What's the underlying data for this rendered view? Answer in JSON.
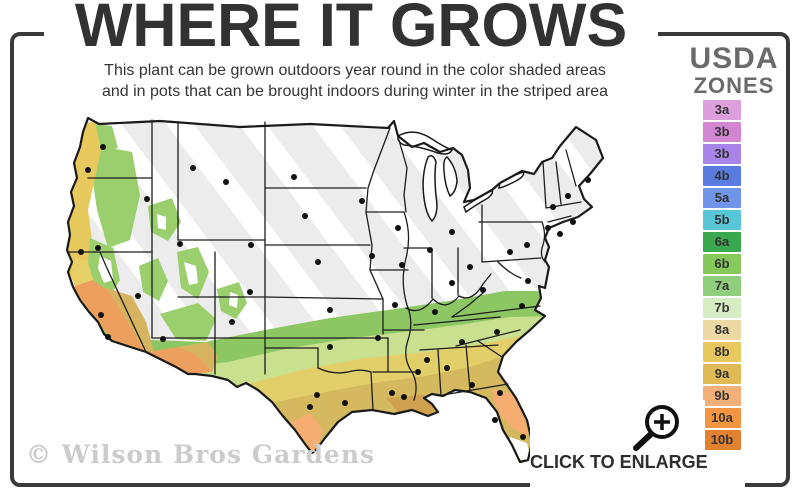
{
  "header": {
    "title": "WHERE IT GROWS",
    "subtitle_line1": "This plant can be grown outdoors year round in the color shaded areas",
    "subtitle_line2": "and in pots that can be brought indoors during winter in the striped area"
  },
  "legend": {
    "title_line1": "USDA",
    "title_line2": "ZONES",
    "zones": [
      {
        "label": "3a",
        "color": "#dda0dd"
      },
      {
        "label": "3b",
        "color": "#d286d2"
      },
      {
        "label": "3b",
        "color": "#a883e8"
      },
      {
        "label": "4b",
        "color": "#5a7be0"
      },
      {
        "label": "5a",
        "color": "#7094e8"
      },
      {
        "label": "5b",
        "color": "#57c7d8"
      },
      {
        "label": "6a",
        "color": "#3aa84e"
      },
      {
        "label": "6b",
        "color": "#86c85a"
      },
      {
        "label": "7a",
        "color": "#8fce7c"
      },
      {
        "label": "7b",
        "color": "#d6edc3"
      },
      {
        "label": "8a",
        "color": "#ecd9a4"
      },
      {
        "label": "8b",
        "color": "#e9c75f"
      },
      {
        "label": "9a",
        "color": "#e0bb55"
      },
      {
        "label": "9b",
        "color": "#f2b078"
      },
      {
        "label": "10a",
        "color": "#f29440"
      },
      {
        "label": "10b",
        "color": "#e2812f"
      }
    ]
  },
  "footer": {
    "watermark": "© Wilson Bros Gardens",
    "enlarge_label": "CLICK TO ENLARGE"
  },
  "map": {
    "colors": {
      "base": "#ececec",
      "stripe": "#ffffff",
      "outline": "#1a1a1a",
      "state_line": "#1d1d1d",
      "green": "#8cc763",
      "yellow_green": "#c9e08f",
      "yellow": "#e3cf6a",
      "khaki": "#d5b95f",
      "orange_pocket": "#f5ad72",
      "tan_pocket": "#cfa14f",
      "coast_orange": "#eda05e",
      "coast_tan": "#d6b45f",
      "coast_yellow": "#e8c95e",
      "valley_yellow": "#e8cf68",
      "mountain_green": "#9bcf6e",
      "snow_white": "#ffffff",
      "lake": "#ffffff",
      "dot": "#111111"
    },
    "city_dots": [
      [
        103,
        147
      ],
      [
        88,
        170
      ],
      [
        147,
        199
      ],
      [
        193,
        168
      ],
      [
        226,
        182
      ],
      [
        294,
        177
      ],
      [
        305,
        216
      ],
      [
        362,
        201
      ],
      [
        251,
        245
      ],
      [
        180,
        244
      ],
      [
        98,
        248
      ],
      [
        81,
        252
      ],
      [
        138,
        296
      ],
      [
        101,
        315
      ],
      [
        108,
        337
      ],
      [
        163,
        339
      ],
      [
        232,
        322
      ],
      [
        250,
        292
      ],
      [
        318,
        262
      ],
      [
        330,
        310
      ],
      [
        330,
        347
      ],
      [
        378,
        338
      ],
      [
        372,
        256
      ],
      [
        395,
        305
      ],
      [
        402,
        265
      ],
      [
        398,
        228
      ],
      [
        452,
        232
      ],
      [
        430,
        250
      ],
      [
        452,
        283
      ],
      [
        470,
        267
      ],
      [
        483,
        290
      ],
      [
        435,
        312
      ],
      [
        317,
        395
      ],
      [
        310,
        407
      ],
      [
        345,
        403
      ],
      [
        392,
        393
      ],
      [
        404,
        397
      ],
      [
        418,
        372
      ],
      [
        427,
        360
      ],
      [
        447,
        368
      ],
      [
        462,
        342
      ],
      [
        472,
        385
      ],
      [
        500,
        393
      ],
      [
        495,
        420
      ],
      [
        523,
        437
      ],
      [
        497,
        332
      ],
      [
        522,
        306
      ],
      [
        528,
        281
      ],
      [
        527,
        245
      ],
      [
        510,
        252
      ],
      [
        548,
        228
      ],
      [
        553,
        207
      ],
      [
        568,
        196
      ],
      [
        588,
        180
      ],
      [
        573,
        222
      ],
      [
        560,
        234
      ]
    ]
  }
}
